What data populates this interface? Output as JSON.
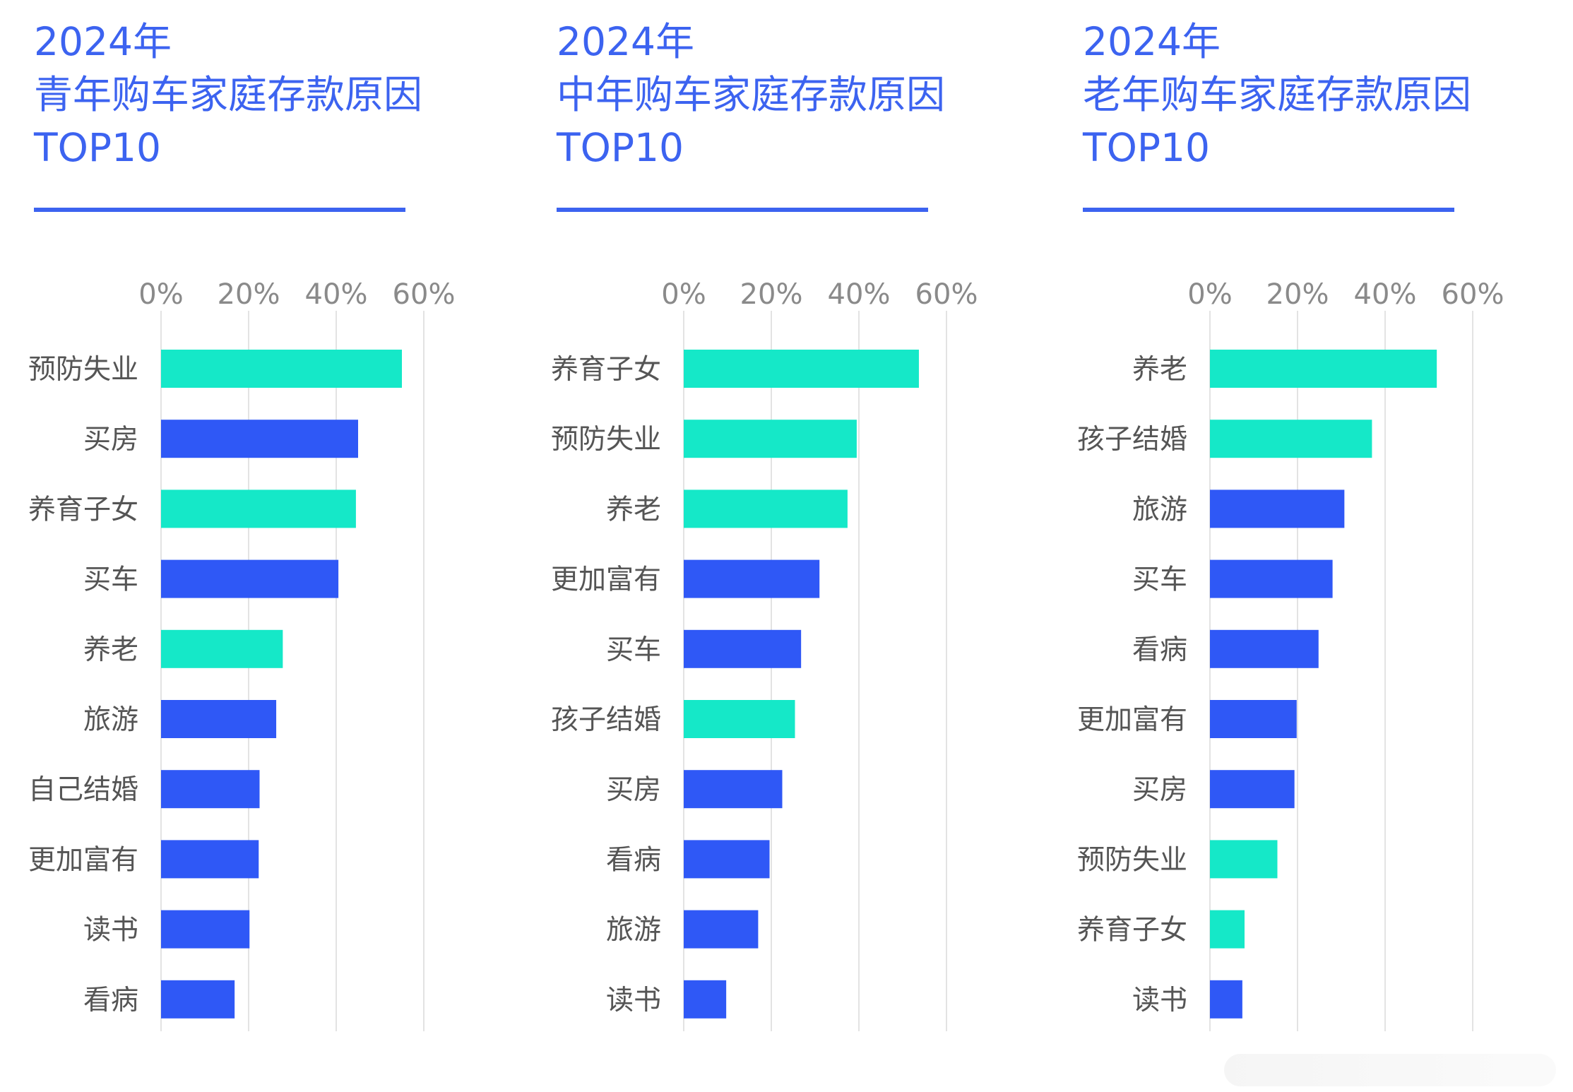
{
  "colors": {
    "title": "#3c63f0",
    "bar_blue": "#2f58f6",
    "bar_teal": "#15e8c8",
    "rule": "#3c63f0"
  },
  "chart_data": [
    {
      "type": "bar",
      "orientation": "horizontal",
      "title_lines": [
        "2024年",
        "青年购车家庭存款原因",
        "TOP10"
      ],
      "x_ticks": [
        "0%",
        "20%",
        "40%",
        "60%"
      ],
      "xlim": [
        0,
        60
      ],
      "grid": true,
      "categories": [
        "预防失业",
        "买房",
        "养育子女",
        "买车",
        "养老",
        "旅游",
        "自己结婚",
        "更加富有",
        "读书",
        "看病"
      ],
      "values": [
        55,
        45,
        44.5,
        40.5,
        27.8,
        26.3,
        22.5,
        22.3,
        20.2,
        16.8
      ],
      "highlight": [
        true,
        false,
        true,
        false,
        true,
        false,
        false,
        false,
        false,
        false
      ]
    },
    {
      "type": "bar",
      "orientation": "horizontal",
      "title_lines": [
        "2024年",
        "中年购车家庭存款原因",
        "TOP10"
      ],
      "x_ticks": [
        "0%",
        "20%",
        "40%",
        "60%"
      ],
      "xlim": [
        0,
        60
      ],
      "grid": true,
      "categories": [
        "养育子女",
        "预防失业",
        "养老",
        "更加富有",
        "买车",
        "孩子结婚",
        "买房",
        "看病",
        "旅游",
        "读书"
      ],
      "values": [
        53.7,
        39.5,
        37.4,
        31,
        26.8,
        25.4,
        22.5,
        19.6,
        17,
        9.7
      ],
      "highlight": [
        true,
        true,
        true,
        false,
        false,
        true,
        false,
        false,
        false,
        false
      ]
    },
    {
      "type": "bar",
      "orientation": "horizontal",
      "title_lines": [
        "2024年",
        "老年购车家庭存款原因",
        "TOP10"
      ],
      "x_ticks": [
        "0%",
        "20%",
        "40%",
        "60%"
      ],
      "xlim": [
        0,
        60
      ],
      "grid": true,
      "categories": [
        "养老",
        "孩子结婚",
        "旅游",
        "买车",
        "看病",
        "更加富有",
        "买房",
        "预防失业",
        "养育子女",
        "读书"
      ],
      "values": [
        51.8,
        37,
        30.7,
        28,
        24.8,
        19.8,
        19.3,
        15.4,
        7.9,
        7.4
      ],
      "highlight": [
        true,
        true,
        false,
        false,
        false,
        false,
        false,
        true,
        true,
        false
      ]
    }
  ]
}
